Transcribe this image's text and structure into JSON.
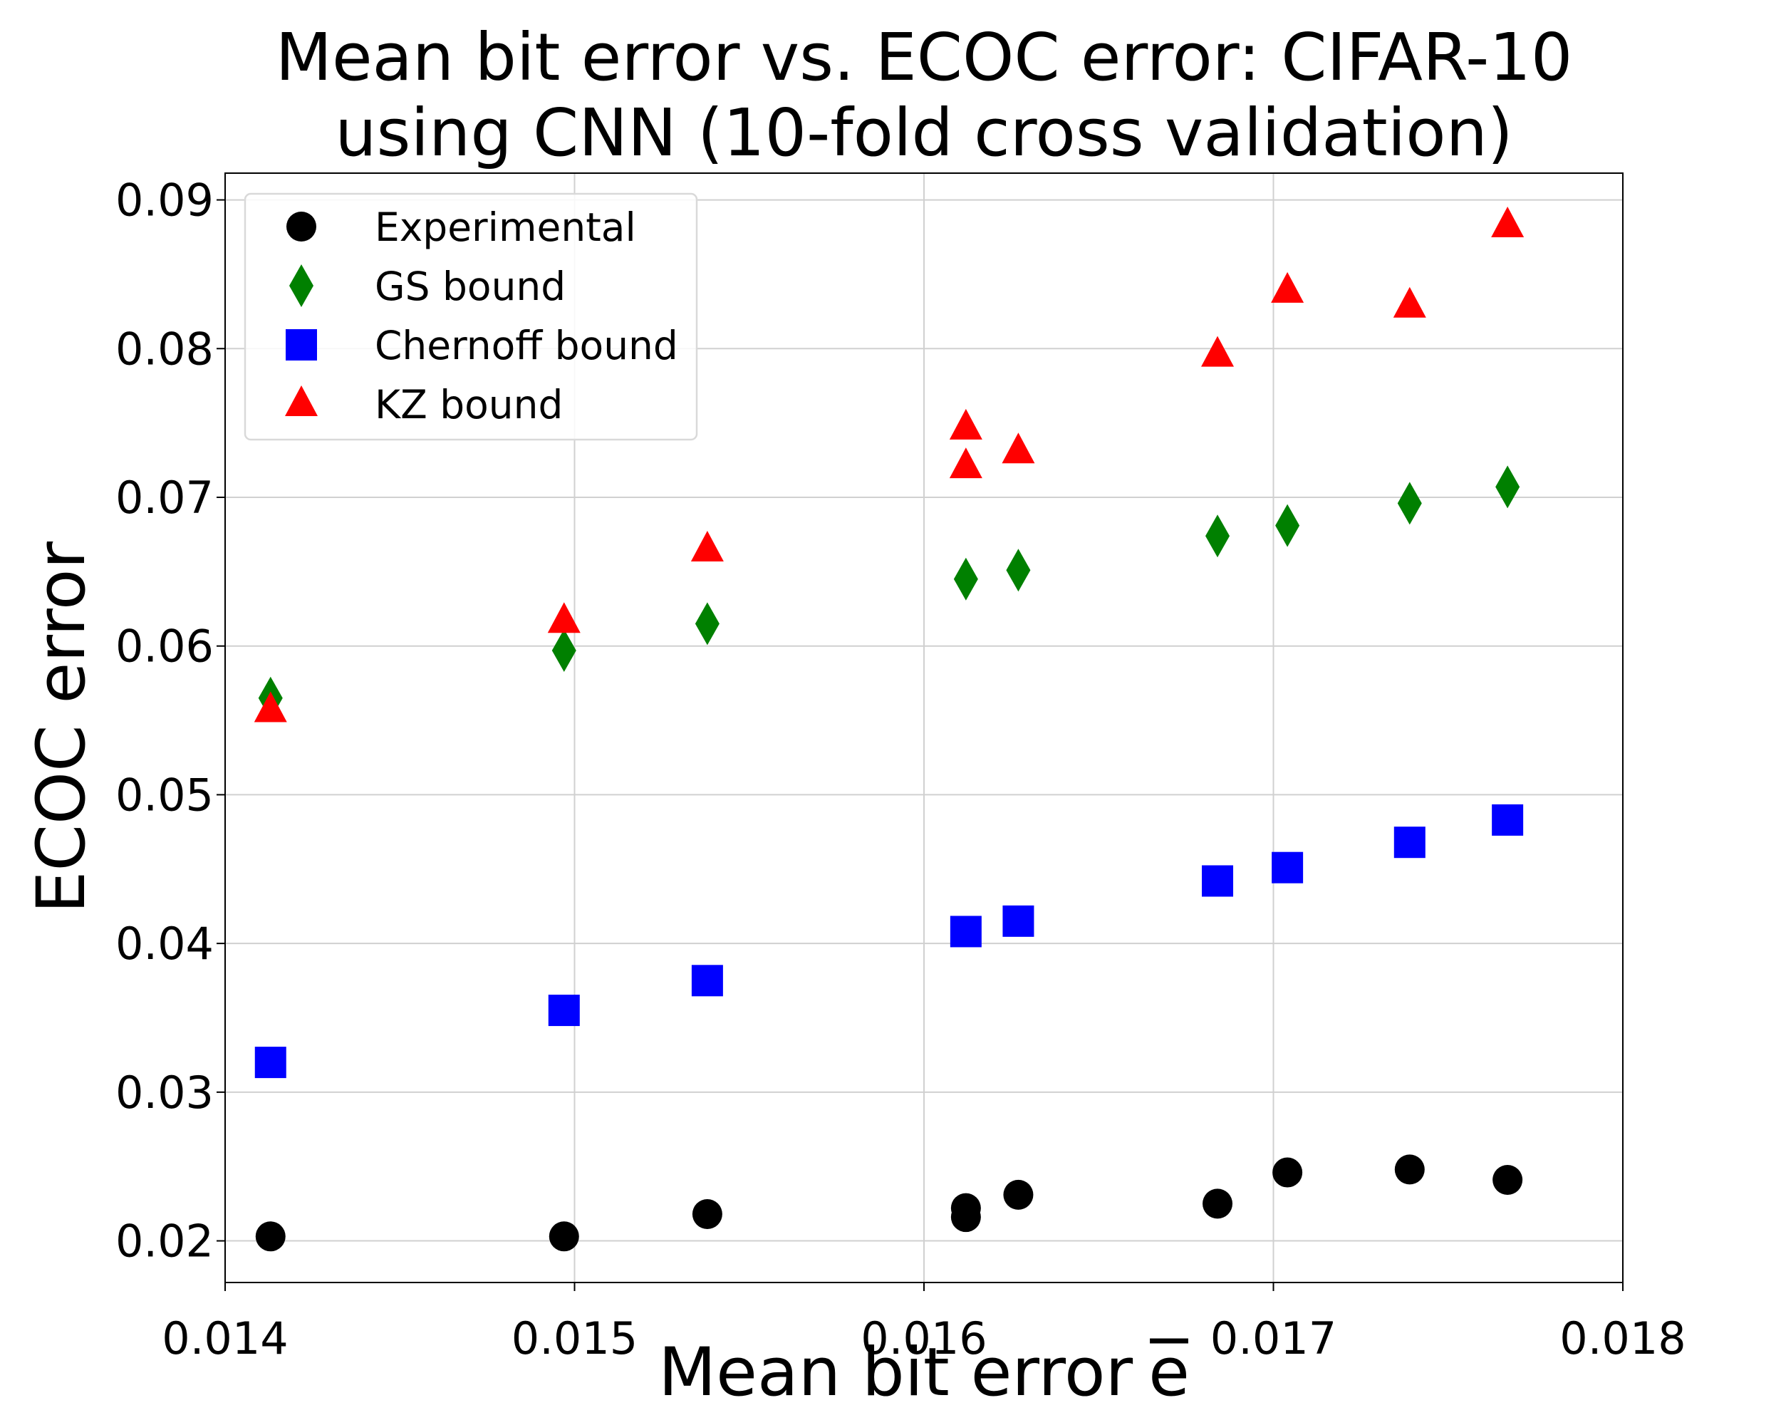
{
  "chart_data": {
    "type": "scatter",
    "title": "Mean bit error vs. ECOC error: CIFAR-10 using CNN (10-fold cross validation)",
    "title_lines": [
      "Mean bit error vs. ECOC error: CIFAR-10",
      "using CNN (10-fold cross validation)"
    ],
    "xlabel": "Mean bit error",
    "xlabel_symbol": "e",
    "ylabel": "ECOC error",
    "xlim": [
      0.014,
      0.018
    ],
    "ylim": [
      0.0172,
      0.0918
    ],
    "x_ticks": [
      0.014,
      0.015,
      0.016,
      0.017,
      0.018
    ],
    "x_tick_labels": [
      "0.014",
      "0.015",
      "0.016",
      "0.017",
      "0.018"
    ],
    "y_ticks": [
      0.02,
      0.03,
      0.04,
      0.05,
      0.06,
      0.07,
      0.08,
      0.09
    ],
    "y_tick_labels": [
      "0.02",
      "0.03",
      "0.04",
      "0.05",
      "0.06",
      "0.07",
      "0.08",
      "0.09"
    ],
    "grid": true,
    "legend_position": "top-left",
    "series": [
      {
        "name": "Experimental",
        "marker": "circle",
        "color": "#000000",
        "points": [
          [
            0.01413,
            0.0203
          ],
          [
            0.01497,
            0.0203
          ],
          [
            0.01538,
            0.0218
          ],
          [
            0.01612,
            0.0222
          ],
          [
            0.01612,
            0.0216
          ],
          [
            0.01627,
            0.0231
          ],
          [
            0.01684,
            0.0225
          ],
          [
            0.01704,
            0.0246
          ],
          [
            0.01739,
            0.0248
          ],
          [
            0.01767,
            0.0241
          ]
        ]
      },
      {
        "name": "GS bound",
        "marker": "diamond",
        "color": "#008000",
        "points": [
          [
            0.01413,
            0.0565
          ],
          [
            0.01497,
            0.0597
          ],
          [
            0.01538,
            0.0615
          ],
          [
            0.01612,
            0.0645
          ],
          [
            0.01627,
            0.0651
          ],
          [
            0.01684,
            0.0674
          ],
          [
            0.01704,
            0.0681
          ],
          [
            0.01739,
            0.0696
          ],
          [
            0.01767,
            0.0707
          ]
        ]
      },
      {
        "name": "Chernoff bound",
        "marker": "square",
        "color": "#0000ff",
        "points": [
          [
            0.01413,
            0.032
          ],
          [
            0.01497,
            0.0355
          ],
          [
            0.01538,
            0.0375
          ],
          [
            0.01612,
            0.0408
          ],
          [
            0.01627,
            0.0415
          ],
          [
            0.01684,
            0.0442
          ],
          [
            0.01704,
            0.0451
          ],
          [
            0.01739,
            0.0468
          ],
          [
            0.01767,
            0.0483
          ]
        ]
      },
      {
        "name": "KZ bound",
        "marker": "triangle",
        "color": "#ff0000",
        "points": [
          [
            0.01413,
            0.0557
          ],
          [
            0.01497,
            0.0617
          ],
          [
            0.01538,
            0.0665
          ],
          [
            0.01612,
            0.0747
          ],
          [
            0.01612,
            0.0721
          ],
          [
            0.01627,
            0.0731
          ],
          [
            0.01684,
            0.0796
          ],
          [
            0.01704,
            0.0839
          ],
          [
            0.01739,
            0.0829
          ],
          [
            0.01767,
            0.0883
          ]
        ]
      }
    ]
  }
}
